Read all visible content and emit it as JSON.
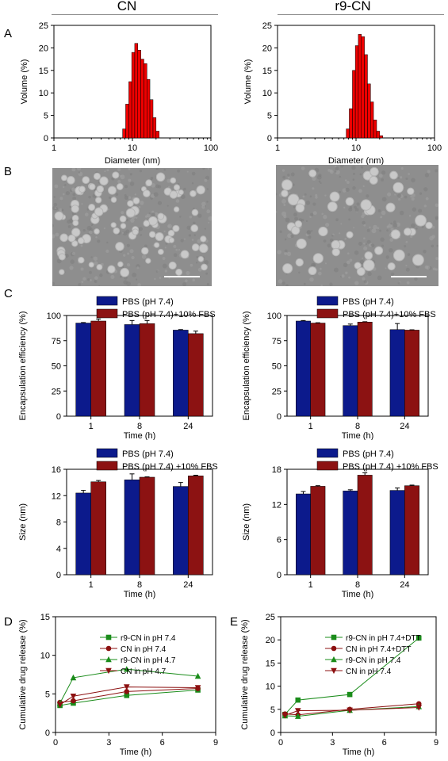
{
  "panel_letters": [
    "A",
    "B",
    "C",
    "D",
    "E"
  ],
  "column_titles": {
    "left": "CN",
    "right": "r9-CN"
  },
  "colors": {
    "navy": "#0c1a8c",
    "maroon": "#8c1212",
    "red": "#ee0000",
    "green": "#1a8c1a",
    "darkred": "#8c1010"
  },
  "chart_data": [
    {
      "id": "A-left",
      "type": "bar",
      "xlabel": "Diameter (nm)",
      "ylabel": "Volume (%)",
      "xscale": "log",
      "xlim": [
        1,
        100
      ],
      "ylim": [
        0,
        25
      ],
      "xticks": [
        1,
        10,
        100
      ],
      "yticks": [
        0,
        5,
        10,
        15,
        20,
        25
      ],
      "bin_edges": [
        7.5,
        8.2,
        9.0,
        9.8,
        10.7,
        11.7,
        12.8,
        14.0,
        15.3,
        16.7,
        18.3,
        20.0,
        21.9
      ],
      "values": [
        2,
        7.5,
        12.5,
        19,
        21,
        19.5,
        17.5,
        16.5,
        13,
        8.5,
        4.5,
        1.5
      ]
    },
    {
      "id": "A-right",
      "type": "bar",
      "xlabel": "Diameter (nm)",
      "ylabel": "Volume (%)",
      "xscale": "log",
      "xlim": [
        1,
        100
      ],
      "ylim": [
        0,
        25
      ],
      "xticks": [
        1,
        10,
        100
      ],
      "yticks": [
        0,
        5,
        10,
        15,
        20,
        25
      ],
      "bin_edges": [
        7.5,
        8.2,
        9.0,
        9.8,
        10.7,
        11.7,
        12.8,
        14.0,
        15.3,
        16.7,
        18.3,
        20.0,
        21.9
      ],
      "values": [
        2,
        6.5,
        15,
        20.5,
        23,
        22.5,
        18.5,
        12,
        8,
        4,
        1.5,
        0.5
      ]
    },
    {
      "id": "C-ee-left",
      "type": "bar",
      "xlabel": "Time (h)",
      "ylabel": "Encapsulation efficiency (%)",
      "categories": [
        "1",
        "8",
        "24"
      ],
      "ylim": [
        0,
        100
      ],
      "yticks": [
        0,
        25,
        50,
        75,
        100
      ],
      "series": [
        {
          "name": "PBS (pH 7.4)",
          "values": [
            92.5,
            91,
            85.5
          ],
          "errors": [
            0.5,
            4,
            0.5
          ]
        },
        {
          "name": "PBS (pH 7.4)+10% FBS",
          "values": [
            94.5,
            92,
            82
          ],
          "errors": [
            2,
            3,
            2.5
          ]
        }
      ]
    },
    {
      "id": "C-ee-right",
      "type": "bar",
      "xlabel": "Time (h)",
      "ylabel": "Encapsulation efficiency (%)",
      "categories": [
        "1",
        "8",
        "24"
      ],
      "ylim": [
        0,
        100
      ],
      "yticks": [
        0,
        25,
        50,
        75,
        100
      ],
      "series": [
        {
          "name": "PBS (pH 7.4)",
          "values": [
            94.5,
            90,
            86
          ],
          "errors": [
            0.5,
            1.5,
            6
          ]
        },
        {
          "name": "PBS (pH 7.4)+10% FBS",
          "values": [
            92.5,
            93.5,
            85.5
          ],
          "errors": [
            0.3,
            0.3,
            0.3
          ]
        }
      ]
    },
    {
      "id": "C-size-left",
      "type": "bar",
      "xlabel": "Time (h)",
      "ylabel": "Size (nm)",
      "categories": [
        "1",
        "8",
        "24"
      ],
      "ylim": [
        0,
        16
      ],
      "yticks": [
        0,
        4,
        8,
        12,
        16
      ],
      "series": [
        {
          "name": "PBS (pH 7.4)",
          "values": [
            12.4,
            14.4,
            13.4
          ],
          "errors": [
            0.4,
            0.9,
            0.6
          ]
        },
        {
          "name": "PBS (pH 7.4) +10% FBS",
          "values": [
            14.1,
            14.8,
            15.0
          ],
          "errors": [
            0.2,
            0.05,
            0.1
          ]
        }
      ]
    },
    {
      "id": "C-size-right",
      "type": "bar",
      "xlabel": "Time (h)",
      "ylabel": "Size (nm)",
      "categories": [
        "1",
        "8",
        "24"
      ],
      "ylim": [
        0,
        18
      ],
      "yticks": [
        0,
        6,
        12,
        18
      ],
      "series": [
        {
          "name": "PBS (pH 7.4)",
          "values": [
            13.8,
            14.3,
            14.4
          ],
          "errors": [
            0.4,
            0.2,
            0.4
          ]
        },
        {
          "name": "PBS (pH 7.4) +10% FBS",
          "values": [
            15.1,
            17.0,
            15.2
          ],
          "errors": [
            0.1,
            0.4,
            0.1
          ]
        }
      ]
    },
    {
      "id": "D",
      "type": "line",
      "xlabel": "Time (h)",
      "ylabel": "Cumulative drug release (%)",
      "xlim": [
        0,
        9
      ],
      "ylim": [
        0,
        15
      ],
      "xticks": [
        0,
        3,
        6,
        9
      ],
      "yticks": [
        0,
        5,
        10,
        15
      ],
      "x": [
        0.25,
        1,
        4,
        8
      ],
      "series": [
        {
          "name": "r9-CN in pH 7.4",
          "values": [
            3.5,
            3.8,
            4.8,
            5.5
          ],
          "color": "#1a8c1a",
          "marker": "square"
        },
        {
          "name": "CN in pH 7.4",
          "values": [
            3.9,
            4.1,
            5.3,
            5.7
          ],
          "color": "#8c1010",
          "marker": "circle"
        },
        {
          "name": "r9-CN in pH 4.7",
          "values": [
            3.8,
            7.1,
            8.2,
            7.3
          ],
          "color": "#1a8c1a",
          "marker": "triangle-up"
        },
        {
          "name": "CN in pH 4.7",
          "values": [
            3.6,
            4.7,
            5.9,
            5.8
          ],
          "color": "#8c1010",
          "marker": "triangle-down"
        }
      ]
    },
    {
      "id": "E",
      "type": "line",
      "xlabel": "Time (h)",
      "ylabel": "Cumulative drug release (%)",
      "xlim": [
        0,
        9
      ],
      "ylim": [
        0,
        25
      ],
      "xticks": [
        0,
        3,
        6,
        9
      ],
      "yticks": [
        0,
        5,
        10,
        15,
        20,
        25
      ],
      "x": [
        0.25,
        1,
        4,
        8
      ],
      "series": [
        {
          "name": "r9-CN in pH 7.4+DTT",
          "values": [
            3.9,
            7.0,
            8.2,
            20.4
          ],
          "color": "#1a8c1a",
          "marker": "square"
        },
        {
          "name": "CN in pH 7.4+DTT",
          "values": [
            4.0,
            3.8,
            5.0,
            6.2
          ],
          "color": "#8c1010",
          "marker": "circle"
        },
        {
          "name": "r9-CN in pH 7.4",
          "values": [
            3.6,
            3.5,
            4.8,
            5.6
          ],
          "color": "#1a8c1a",
          "marker": "triangle-up"
        },
        {
          "name": "CN in pH 7.4",
          "values": [
            3.7,
            4.7,
            4.8,
            5.4
          ],
          "color": "#8c1010",
          "marker": "triangle-down"
        }
      ]
    }
  ]
}
